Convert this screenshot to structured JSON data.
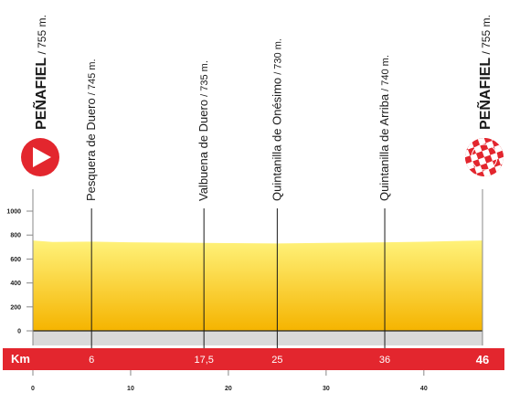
{
  "chart_data": {
    "type": "area",
    "y_ticks": [
      "1000",
      "800",
      "600",
      "400",
      "200",
      "0"
    ],
    "y_tick_values": [
      1000,
      800,
      600,
      400,
      200,
      0
    ],
    "x_ticks": [
      "0",
      "10",
      "20",
      "30",
      "40"
    ],
    "x_tick_values": [
      0,
      10,
      20,
      30,
      40
    ],
    "xlim": [
      0,
      46
    ],
    "ylim": [
      0,
      1000
    ],
    "band_label": "Km",
    "profile": {
      "x": [
        0,
        2,
        6,
        10,
        17.5,
        20,
        25,
        30,
        36,
        40,
        44,
        46
      ],
      "y": [
        755,
        742,
        745,
        740,
        735,
        733,
        730,
        735,
        740,
        744,
        752,
        755
      ]
    },
    "start": {
      "name": "PEÑAFIEL",
      "alt": " / 755 m.",
      "color": "#e3262e"
    },
    "finish": {
      "name": "PEÑAFIEL",
      "alt": " / 755 m.",
      "color": "#e3262e"
    },
    "waypoints": [
      {
        "km": 6,
        "km_label": "6",
        "name": "Pesquera de Duero",
        "alt": " / 745 m."
      },
      {
        "km": 17.5,
        "km_label": "17,5",
        "name": "Valbuena de Duero",
        "alt": " / 735 m."
      },
      {
        "km": 25,
        "km_label": "25",
        "name": "Quintanilla de Onésimo",
        "alt": " / 730 m."
      },
      {
        "km": 36,
        "km_label": "36",
        "name": "Quintanilla de Arriba",
        "alt": " / 740 m."
      }
    ],
    "finish_km_label": "46",
    "colors": {
      "fill_top": "#fff27a",
      "fill_bottom": "#f5b400",
      "band": "#e3262e",
      "grey_band": "#d9d9d9",
      "guide_line": "#1a1a1a"
    }
  }
}
